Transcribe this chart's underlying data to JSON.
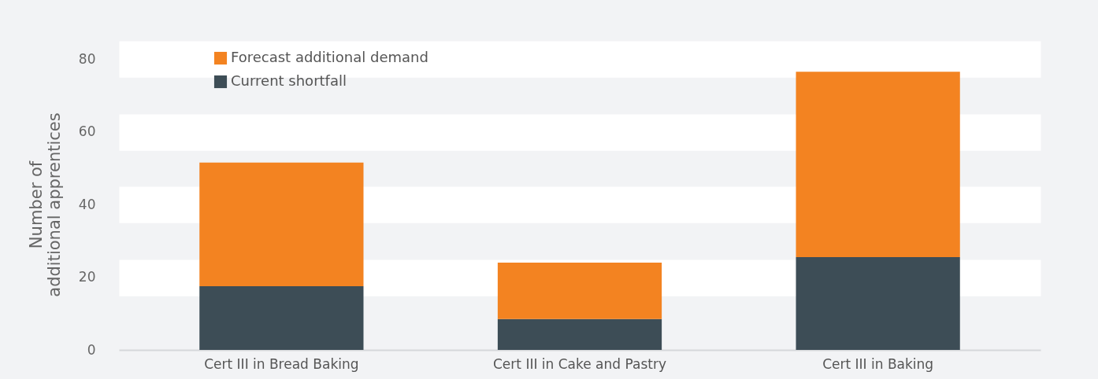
{
  "chart_data": {
    "type": "bar",
    "stacked": true,
    "ylabel": "Number of\nadditional apprentices",
    "categories": [
      "Cert III in Bread Baking",
      "Cert III in Cake and Pastry",
      "Cert III in Baking"
    ],
    "series": [
      {
        "name": "Current shortfall",
        "color": "#3d4d56",
        "values": [
          17.5,
          8.5,
          25.5
        ]
      },
      {
        "name": "Forecast additional demand",
        "color": "#f38321",
        "values": [
          34,
          15.5,
          51
        ]
      }
    ],
    "ylim": [
      0,
      80
    ],
    "yticks": [
      0,
      20,
      40,
      60,
      80
    ],
    "grid": "y",
    "legend": "top left"
  }
}
